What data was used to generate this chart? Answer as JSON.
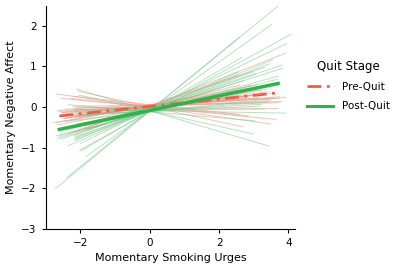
{
  "xlabel": "Momentary Smoking Urges",
  "ylabel": "Momentary Negative Affect",
  "xlim": [
    -3.0,
    4.2
  ],
  "ylim": [
    -3.0,
    2.5
  ],
  "xticks": [
    -2,
    0,
    2,
    4
  ],
  "yticks": [
    -3,
    -2,
    -1,
    0,
    1,
    2
  ],
  "pre_quit_color": "#e8604c",
  "post_quit_color": "#2db34a",
  "pre_quit_individual_color": "#e89080",
  "post_quit_individual_color": "#80c890",
  "pre_quit_main": {
    "x_start": -2.6,
    "x_end": 3.7,
    "y_start": -0.22,
    "y_end": 0.35
  },
  "post_quit_main": {
    "x_start": -2.6,
    "x_end": 3.7,
    "y_start": -0.55,
    "y_end": 0.58
  },
  "legend_title": "Quit Stage",
  "legend_pre": "Pre-Quit",
  "legend_post": "Post-Quit",
  "background_color": "#ffffff",
  "n_pre_quit_lines": 28,
  "n_post_quit_lines": 28,
  "fig_width": 4.0,
  "fig_height": 2.69,
  "dpi": 100
}
